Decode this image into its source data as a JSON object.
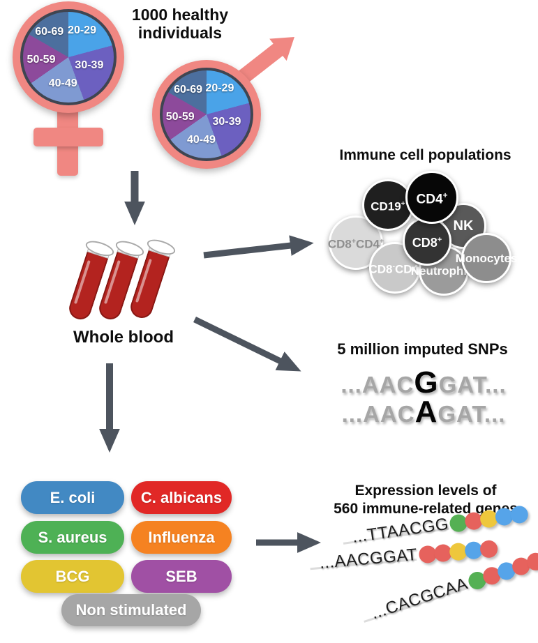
{
  "title": "1000 healthy\nindividuals",
  "title_line1": "1000 healthy",
  "title_line2": "individuals",
  "demographics": {
    "symbol_color": "#f08782",
    "age_groups": [
      {
        "label": "20-29",
        "color": "#4aa3e8",
        "start": 0,
        "end": 75
      },
      {
        "label": "30-39",
        "color": "#6c60c0",
        "start": 75,
        "end": 160
      },
      {
        "label": "40-49",
        "color": "#7f9ad2",
        "start": 160,
        "end": 235
      },
      {
        "label": "50-59",
        "color": "#8d4a9b",
        "start": 235,
        "end": 300
      },
      {
        "label": "60-69",
        "color": "#4c6f9e",
        "start": 300,
        "end": 360
      }
    ]
  },
  "whole_blood": {
    "label": "Whole blood",
    "blood_color": "#b3231f"
  },
  "immune_cells": {
    "title": "Immune cell populations",
    "cells": [
      {
        "lines": [
          "CD8+",
          "CD4+"
        ],
        "bg": "#dadada",
        "fg": "#8f8f8f"
      },
      {
        "lines": [
          "CD19+"
        ],
        "bg": "#1f1f1f",
        "fg": "#ffffff"
      },
      {
        "lines": [
          "CD4+"
        ],
        "bg": "#070707",
        "fg": "#ffffff"
      },
      {
        "lines": [
          "NK"
        ],
        "bg": "#595959",
        "fg": "#ffffff"
      },
      {
        "lines": [
          "CD8+"
        ],
        "bg": "#333333",
        "fg": "#ffffff"
      },
      {
        "lines": [
          "CD8-",
          "CD4-"
        ],
        "bg": "#c9c9c9",
        "fg": "#ffffff"
      },
      {
        "lines": [
          "Neutro",
          "phils"
        ],
        "bg": "#9b9b9b",
        "fg": "#ffffff"
      },
      {
        "lines": [
          "Mono",
          "cytes"
        ],
        "bg": "#8d8d8d",
        "fg": "#ffffff"
      }
    ]
  },
  "snps": {
    "title": "5 million imputed SNPs",
    "lines": [
      {
        "pre": "...AAC",
        "variant": "G",
        "post": "GAT..."
      },
      {
        "pre": "...AAC",
        "variant": "A",
        "post": "GAT..."
      }
    ]
  },
  "stimuli": {
    "items": [
      {
        "label": "E. coli",
        "color": "#4289c3"
      },
      {
        "label": "C. albicans",
        "color": "#e12826"
      },
      {
        "label": "S. aureus",
        "color": "#4eb155"
      },
      {
        "label": "Influenza",
        "color": "#f58221"
      },
      {
        "label": "BCG",
        "color": "#e2c532"
      },
      {
        "label": "SEB",
        "color": "#a050a4"
      },
      {
        "label": "Non stimulated",
        "color": "#a6a6a6"
      }
    ]
  },
  "expression": {
    "title_line1": "Expression levels of",
    "title_line2": "560 immune-related genes",
    "dot_colors": {
      "green": "#55b054",
      "red": "#e6625d",
      "yellow": "#eec73c",
      "blue": "#56a4e9"
    },
    "rows": [
      {
        "seq": "...TTAACGG",
        "dots": [
          "green",
          "red",
          "yellow",
          "blue",
          "blue"
        ]
      },
      {
        "seq": "...AACGGAT",
        "dots": [
          "red",
          "red",
          "yellow",
          "blue",
          "red"
        ]
      },
      {
        "seq": "...CACGCAA",
        "dots": [
          "green",
          "red",
          "blue",
          "red",
          "red"
        ]
      }
    ]
  },
  "arrow_color": "#4d545e"
}
